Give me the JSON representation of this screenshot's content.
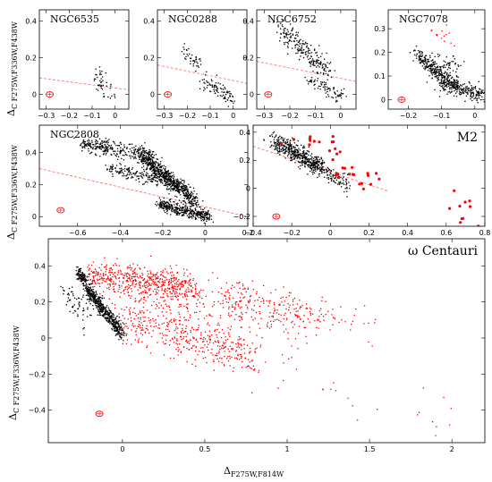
{
  "figure": {
    "ylabel_main": "Δ",
    "ylabel_sub": "C F275W,F336W,F438W",
    "xlabel_main": "Δ",
    "xlabel_sub": "F275W,F814W"
  },
  "colors": {
    "pop1": "#000000",
    "pop2": "#ff0000",
    "line": "#ff6666"
  },
  "chart_data": [
    {
      "type": "scatter",
      "title": "NGC6535",
      "xlim": [
        -0.33,
        0.06
      ],
      "ylim": [
        -0.08,
        0.46
      ],
      "xticks": [
        -0.3,
        -0.2,
        -0.1,
        0
      ],
      "xticklabels": [
        "−0.3",
        "−0.2",
        "−0.1",
        "0"
      ],
      "yticks": [
        0,
        0.2,
        0.4
      ],
      "yticklabels": [
        "0",
        "0.2",
        "0.4"
      ],
      "fiducial_line": [
        [
          -0.33,
          0.09
        ],
        [
          0.06,
          0.025
        ]
      ],
      "error_ellipse": {
        "x": -0.285,
        "y": 0.0
      },
      "series": [
        {
          "color": "black",
          "clusters": [
            {
              "x0": -0.09,
              "y0": 0.13,
              "x1": -0.02,
              "y1": 0.0,
              "n": 45,
              "spread": 0.03
            }
          ]
        }
      ]
    },
    {
      "type": "scatter",
      "title": "NGC0288",
      "xlim": [
        -0.33,
        0.06
      ],
      "ylim": [
        -0.08,
        0.46
      ],
      "xticks": [
        -0.3,
        -0.2,
        -0.1,
        0
      ],
      "xticklabels": [
        "−0.3",
        "−0.2",
        "−0.1",
        "0"
      ],
      "yticks": [
        0,
        0.2,
        0.4
      ],
      "yticklabels": [
        "0",
        "0.2",
        "0.4"
      ],
      "fiducial_line": [
        [
          -0.33,
          0.16
        ],
        [
          0.06,
          0.06
        ]
      ],
      "error_ellipse": {
        "x": -0.285,
        "y": 0.0
      },
      "series": [
        {
          "color": "black",
          "clusters": [
            {
              "x0": -0.22,
              "y0": 0.26,
              "x1": -0.15,
              "y1": 0.14,
              "n": 40,
              "spread": 0.02
            },
            {
              "x0": -0.13,
              "y0": 0.08,
              "x1": 0.0,
              "y1": -0.03,
              "n": 90,
              "spread": 0.02
            }
          ]
        }
      ]
    },
    {
      "type": "scatter",
      "title": "NGC6752",
      "xlim": [
        -0.33,
        0.06
      ],
      "ylim": [
        -0.08,
        0.46
      ],
      "xticks": [
        -0.3,
        -0.2,
        -0.1,
        0
      ],
      "xticklabels": [
        "−0.3",
        "−0.2",
        "−0.1",
        "0"
      ],
      "yticks": [
        0,
        0.2,
        0.4
      ],
      "yticklabels": [
        "0",
        "0.2",
        "0.4"
      ],
      "fiducial_line": [
        [
          -0.33,
          0.18
        ],
        [
          0.06,
          0.07
        ]
      ],
      "error_ellipse": {
        "x": -0.285,
        "y": 0.0
      },
      "series": [
        {
          "color": "black",
          "clusters": [
            {
              "x0": -0.24,
              "y0": 0.37,
              "x1": -0.05,
              "y1": 0.12,
              "n": 220,
              "spread": 0.025
            },
            {
              "x0": -0.12,
              "y0": 0.07,
              "x1": 0.0,
              "y1": -0.01,
              "n": 80,
              "spread": 0.02
            }
          ]
        }
      ]
    },
    {
      "type": "scatter",
      "title": "NGC7078",
      "xlim": [
        -0.26,
        0.03
      ],
      "ylim": [
        -0.04,
        0.38
      ],
      "xticks": [
        -0.2,
        -0.1,
        0
      ],
      "xticklabels": [
        "−0.2",
        "−0.1",
        "0"
      ],
      "yticks": [
        0,
        0.1,
        0.2,
        0.3
      ],
      "yticklabels": [
        "0",
        "0.1",
        "0.2",
        "0.3"
      ],
      "error_ellipse": {
        "x": -0.22,
        "y": 0.0
      },
      "series": [
        {
          "color": "black",
          "clusters": [
            {
              "x0": -0.18,
              "y0": 0.2,
              "x1": -0.06,
              "y1": 0.05,
              "n": 260,
              "spread": 0.015
            },
            {
              "x0": -0.13,
              "y0": 0.13,
              "x1": -0.05,
              "y1": 0.14,
              "n": 90,
              "spread": 0.03
            },
            {
              "x0": -0.1,
              "y0": 0.07,
              "x1": 0.02,
              "y1": 0.02,
              "n": 200,
              "spread": 0.015
            }
          ]
        },
        {
          "color": "red",
          "clusters": [
            {
              "x0": -0.12,
              "y0": 0.3,
              "x1": -0.07,
              "y1": 0.25,
              "n": 14,
              "spread": 0.02
            }
          ]
        }
      ]
    },
    {
      "type": "scatter",
      "title": "NGC2808",
      "xlim": [
        -0.78,
        0.2
      ],
      "ylim": [
        -0.06,
        0.57
      ],
      "xticks": [
        -0.6,
        -0.4,
        -0.2,
        0,
        0.2
      ],
      "xticklabels": [
        "−0.6",
        "−0.4",
        "−0.2",
        "0",
        "0.2"
      ],
      "yticks": [
        0,
        0.2,
        0.4
      ],
      "yticklabels": [
        "0",
        "0.2",
        "0.4"
      ],
      "fiducial_line": [
        [
          -0.78,
          0.3
        ],
        [
          0.2,
          0.0
        ]
      ],
      "error_ellipse": {
        "x": -0.68,
        "y": 0.04
      },
      "series": [
        {
          "color": "black",
          "clusters": [
            {
              "x0": -0.58,
              "y0": 0.45,
              "x1": -0.25,
              "y1": 0.38,
              "n": 300,
              "spread": 0.025
            },
            {
              "x0": -0.3,
              "y0": 0.38,
              "x1": -0.05,
              "y1": 0.1,
              "n": 650,
              "spread": 0.025
            },
            {
              "x0": -0.45,
              "y0": 0.3,
              "x1": -0.12,
              "y1": 0.2,
              "n": 200,
              "spread": 0.02
            },
            {
              "x0": -0.22,
              "y0": 0.08,
              "x1": 0.02,
              "y1": 0.0,
              "n": 380,
              "spread": 0.018
            }
          ]
        }
      ]
    },
    {
      "type": "scatter",
      "title": "M2",
      "xlim": [
        -0.4,
        0.8
      ],
      "ylim": [
        -0.27,
        0.45
      ],
      "xticks": [
        -0.4,
        -0.2,
        0,
        0.2,
        0.4,
        0.6,
        0.8
      ],
      "xticklabels": [
        "−0.4",
        "−0.2",
        "0",
        "0.2",
        "0.4",
        "0.6",
        "0.8"
      ],
      "yticks": [
        -0.2,
        0,
        0.2,
        0.4
      ],
      "yticklabels": [
        "−0.2",
        "0",
        "0.2",
        "0.4"
      ],
      "fiducial_line": [
        [
          -0.4,
          0.3
        ],
        [
          0.3,
          -0.02
        ]
      ],
      "error_ellipse": {
        "x": -0.28,
        "y": -0.2
      },
      "series": [
        {
          "color": "black",
          "clusters": [
            {
              "x0": -0.3,
              "y0": 0.34,
              "x1": -0.05,
              "y1": 0.15,
              "n": 420,
              "spread": 0.03
            },
            {
              "x0": -0.15,
              "y0": 0.22,
              "x1": 0.1,
              "y1": 0.02,
              "n": 160,
              "spread": 0.03
            }
          ]
        },
        {
          "color": "red",
          "clusters": [
            {
              "x0": -0.2,
              "y0": 0.35,
              "x1": 0.2,
              "y1": 0.2,
              "n": 18,
              "spread": 0.05
            },
            {
              "x0": 0.0,
              "y0": 0.1,
              "x1": 0.3,
              "y1": 0.05,
              "n": 16,
              "spread": 0.04
            },
            {
              "x0": 0.6,
              "y0": -0.1,
              "x1": 0.78,
              "y1": -0.2,
              "n": 10,
              "spread": 0.05
            }
          ]
        }
      ]
    },
    {
      "type": "scatter",
      "title": "ω Centauri",
      "xlim": [
        -0.45,
        2.2
      ],
      "ylim": [
        -0.58,
        0.55
      ],
      "xticks": [
        0,
        0.5,
        1,
        1.5,
        2
      ],
      "xticklabels": [
        "0",
        "0.5",
        "1",
        "1.5",
        "2"
      ],
      "yticks": [
        -0.4,
        -0.2,
        0,
        0.2,
        0.4
      ],
      "yticklabels": [
        "−0.4",
        "−0.2",
        "0",
        "0.2",
        "0.4"
      ],
      "error_ellipse": {
        "x": -0.14,
        "y": -0.42
      },
      "series": [
        {
          "color": "black",
          "clusters": [
            {
              "x0": -0.27,
              "y0": 0.36,
              "x1": -0.22,
              "y1": 0.32,
              "n": 120,
              "spread": 0.015
            },
            {
              "x0": -0.22,
              "y0": 0.28,
              "x1": 0.0,
              "y1": 0.02,
              "n": 520,
              "spread": 0.02
            },
            {
              "x0": -0.35,
              "y0": 0.28,
              "x1": -0.2,
              "y1": 0.1,
              "n": 60,
              "spread": 0.04
            }
          ]
        },
        {
          "color": "red",
          "clusters": [
            {
              "x0": -0.2,
              "y0": 0.35,
              "x1": 0.45,
              "y1": 0.28,
              "n": 520,
              "spread": 0.04
            },
            {
              "x0": 0.0,
              "y0": 0.25,
              "x1": 1.2,
              "y1": 0.1,
              "n": 300,
              "spread": 0.06
            },
            {
              "x0": 0.0,
              "y0": 0.1,
              "x1": 0.8,
              "y1": -0.1,
              "n": 400,
              "spread": 0.06
            },
            {
              "x0": 0.6,
              "y0": 0.25,
              "x1": 1.5,
              "y1": 0.08,
              "n": 120,
              "spread": 0.05
            },
            {
              "x0": 0.5,
              "y0": -0.05,
              "x1": 2.05,
              "y1": -0.5,
              "n": 40,
              "spread": 0.08
            }
          ]
        }
      ]
    }
  ]
}
